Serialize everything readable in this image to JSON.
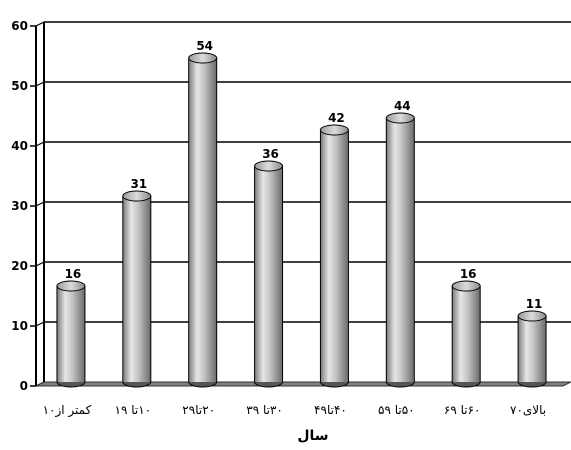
{
  "chart_data": {
    "type": "bar",
    "categories": [
      "کمتر از۱۰",
      "۱۰تا ۱۹",
      "۲۰تا۲۹",
      "۳۰تا ۳۹",
      "۴۰تا۴۹",
      "۵۰تا ۵۹",
      "۶۰تا ۶۹",
      "بالای۷۰"
    ],
    "values": [
      16,
      31,
      54,
      36,
      42,
      44,
      16,
      11
    ],
    "xlabel": "سال",
    "ylabel": "",
    "ylim": [
      0,
      60
    ],
    "yticks": [
      0,
      10,
      20,
      30,
      40,
      50,
      60
    ],
    "grid": true,
    "bar_style": "3d-cylinder",
    "colors": {
      "bar_light": "#e8e8e8",
      "bar_mid": "#b8b8b8",
      "bar_dark": "#6e6e6e",
      "floor": "#808080",
      "gridline": "#000000",
      "background": "#ffffff"
    }
  }
}
